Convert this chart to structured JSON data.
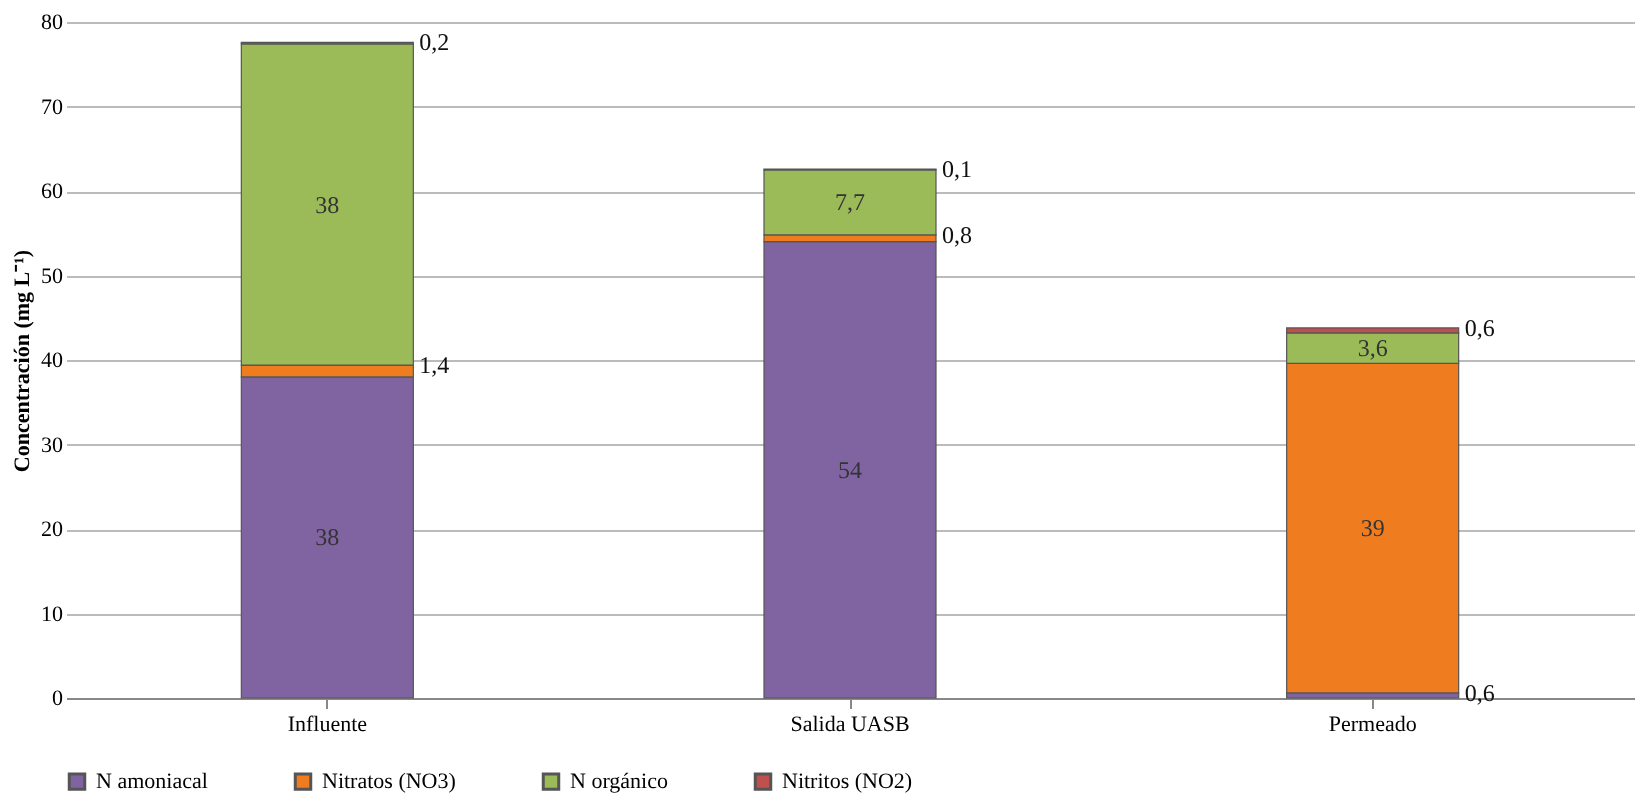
{
  "chart_data": {
    "type": "bar",
    "stacked": true,
    "ylabel": "Concentración (mg L⁻¹)",
    "categories": [
      "Influente",
      "Salida UASB",
      "Permeado"
    ],
    "series": [
      {
        "name": "N amoniacal",
        "color": "#8064a2",
        "values": [
          38,
          54,
          0.6
        ],
        "value_labels": [
          "38",
          "54",
          "0,6"
        ]
      },
      {
        "name": "Nitratos (NO3)",
        "color": "#ef7d1f",
        "values": [
          1.4,
          0.8,
          39
        ],
        "value_labels": [
          "1,4",
          "0,8",
          "39"
        ]
      },
      {
        "name": "N orgánico",
        "color": "#9bbb59",
        "values": [
          38,
          7.7,
          3.6
        ],
        "value_labels": [
          "38",
          "7,7",
          "3,6"
        ]
      },
      {
        "name": "Nitritos (NO2)",
        "color": "#c0504d",
        "values": [
          0.2,
          0.1,
          0.6
        ],
        "value_labels": [
          "0,2",
          "0,1",
          "0,6"
        ]
      }
    ],
    "ylim": [
      0,
      80
    ],
    "yticks": [
      0,
      10,
      20,
      30,
      40,
      50,
      60,
      70,
      80
    ],
    "grid": "y",
    "legend": "bottom"
  }
}
